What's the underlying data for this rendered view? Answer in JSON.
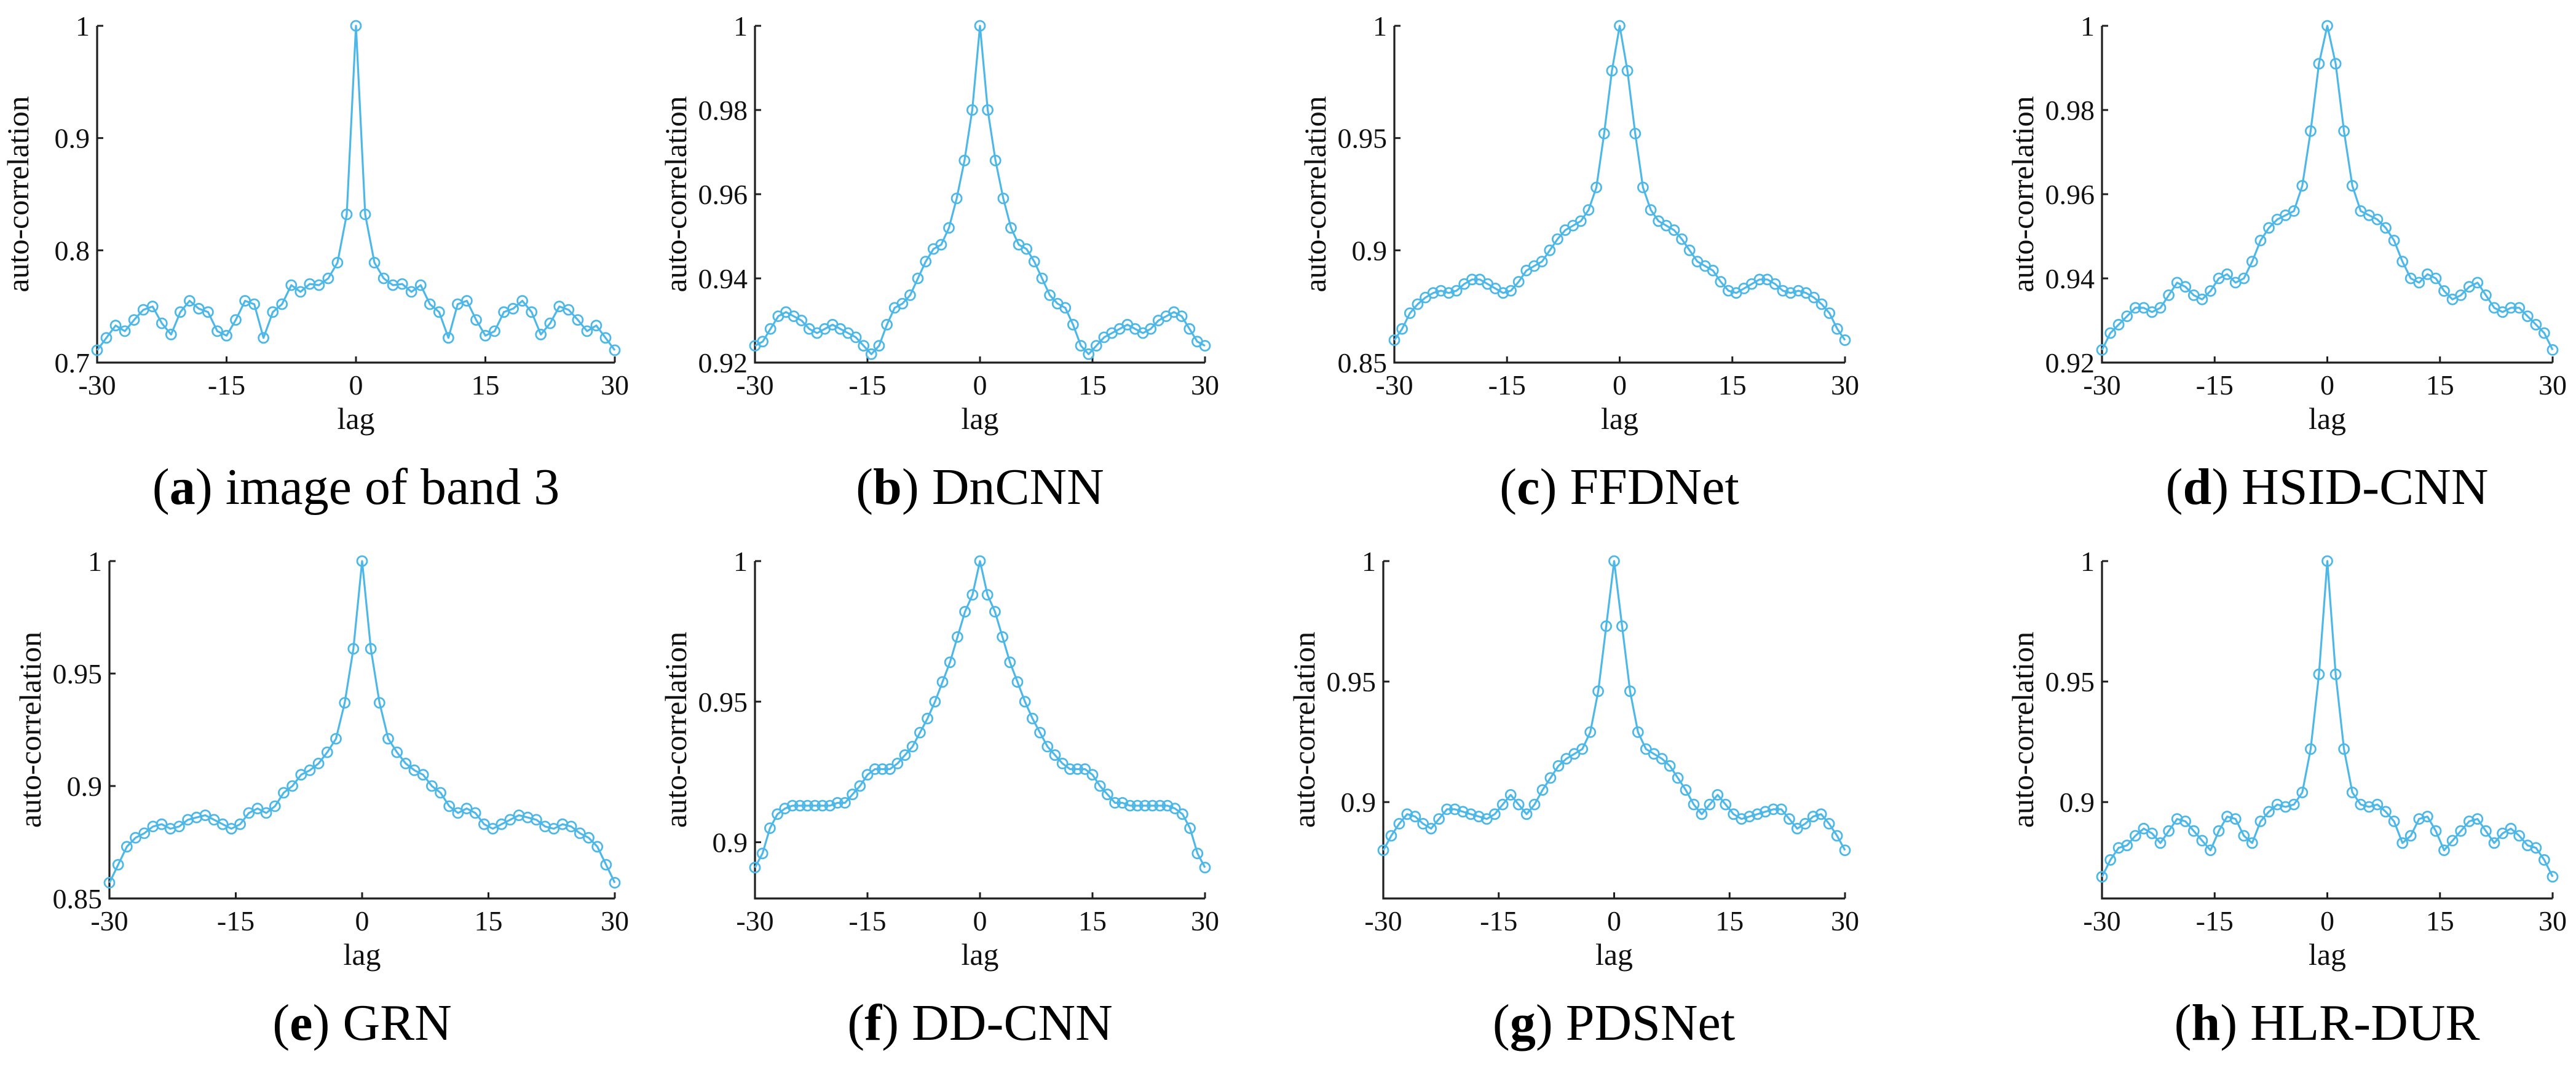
{
  "style": {
    "line_color": "#4db8e8",
    "axis_color": "#1f1f1f"
  },
  "chart_data": [
    {
      "id": "a",
      "type": "line",
      "caption_letter": "a",
      "caption_text": "image of band 3",
      "xlabel": "lag",
      "ylabel": "auto-correlation",
      "xlim": [
        -30,
        30
      ],
      "ylim": [
        0.7,
        1.0
      ],
      "xticks": [
        -30,
        -15,
        0,
        15,
        30
      ],
      "xtick_labels": [
        "-30",
        "-15",
        "0",
        "15",
        "30"
      ],
      "yticks": [
        0.7,
        0.8,
        0.9,
        1.0
      ],
      "ytick_labels": [
        "0.7",
        "0.8",
        "0.9",
        "1"
      ],
      "x_start": -30,
      "values": [
        0.711,
        0.722,
        0.733,
        0.728,
        0.738,
        0.747,
        0.75,
        0.735,
        0.725,
        0.745,
        0.755,
        0.748,
        0.745,
        0.728,
        0.724,
        0.738,
        0.755,
        0.752,
        0.722,
        0.745,
        0.752,
        0.769,
        0.763,
        0.77,
        0.769,
        0.775,
        0.789,
        0.832,
        1.0,
        0.832,
        0.789,
        0.775,
        0.769,
        0.77,
        0.763,
        0.769,
        0.752,
        0.745,
        0.722,
        0.752,
        0.755,
        0.738,
        0.724,
        0.728,
        0.745,
        0.748,
        0.755,
        0.745,
        0.725,
        0.735,
        0.75,
        0.747,
        0.738,
        0.728,
        0.733,
        0.722,
        0.711
      ]
    },
    {
      "id": "b",
      "type": "line",
      "caption_letter": "b",
      "caption_text": "DnCNN",
      "xlabel": "lag",
      "ylabel": "auto-correlation",
      "xlim": [
        -30,
        30
      ],
      "ylim": [
        0.92,
        1.0
      ],
      "xticks": [
        -30,
        -15,
        0,
        15,
        30
      ],
      "xtick_labels": [
        "-30",
        "-15",
        "0",
        "15",
        "30"
      ],
      "yticks": [
        0.92,
        0.94,
        0.96,
        0.98,
        1.0
      ],
      "ytick_labels": [
        "0.92",
        "0.94",
        "0.96",
        "0.98",
        "1"
      ],
      "x_start": -30,
      "values": [
        0.924,
        0.925,
        0.928,
        0.931,
        0.932,
        0.931,
        0.93,
        0.928,
        0.927,
        0.928,
        0.929,
        0.928,
        0.927,
        0.926,
        0.924,
        0.922,
        0.924,
        0.929,
        0.933,
        0.934,
        0.936,
        0.94,
        0.944,
        0.947,
        0.948,
        0.952,
        0.959,
        0.968,
        0.98,
        1.0,
        0.98,
        0.968,
        0.959,
        0.952,
        0.948,
        0.947,
        0.944,
        0.94,
        0.936,
        0.934,
        0.933,
        0.929,
        0.924,
        0.922,
        0.924,
        0.926,
        0.927,
        0.928,
        0.929,
        0.928,
        0.927,
        0.928,
        0.93,
        0.931,
        0.932,
        0.931,
        0.928,
        0.925,
        0.924
      ]
    },
    {
      "id": "c",
      "type": "line",
      "caption_letter": "c",
      "caption_text": "FFDNet",
      "xlabel": "lag",
      "ylabel": "auto-correlation",
      "xlim": [
        -30,
        30
      ],
      "ylim": [
        0.85,
        1.0
      ],
      "xticks": [
        -30,
        -15,
        0,
        15,
        30
      ],
      "xtick_labels": [
        "-30",
        "-15",
        "0",
        "15",
        "30"
      ],
      "yticks": [
        0.85,
        0.9,
        0.95,
        1.0
      ],
      "ytick_labels": [
        "0.85",
        "0.9",
        "0.95",
        "1"
      ],
      "x_start": -30,
      "values": [
        0.86,
        0.865,
        0.872,
        0.876,
        0.879,
        0.881,
        0.882,
        0.881,
        0.882,
        0.885,
        0.887,
        0.887,
        0.885,
        0.883,
        0.881,
        0.882,
        0.886,
        0.891,
        0.893,
        0.895,
        0.9,
        0.905,
        0.909,
        0.911,
        0.913,
        0.918,
        0.928,
        0.952,
        0.98,
        1.0,
        0.98,
        0.952,
        0.928,
        0.918,
        0.913,
        0.911,
        0.909,
        0.905,
        0.9,
        0.895,
        0.893,
        0.891,
        0.886,
        0.882,
        0.881,
        0.883,
        0.885,
        0.887,
        0.887,
        0.885,
        0.882,
        0.881,
        0.882,
        0.881,
        0.879,
        0.876,
        0.872,
        0.865,
        0.86
      ]
    },
    {
      "id": "d",
      "type": "line",
      "caption_letter": "d",
      "caption_text": "HSID-CNN",
      "xlabel": "lag",
      "ylabel": "auto-correlation",
      "xlim": [
        -30,
        30
      ],
      "ylim": [
        0.92,
        1.0
      ],
      "xticks": [
        -30,
        -15,
        0,
        15,
        30
      ],
      "xtick_labels": [
        "-30",
        "-15",
        "0",
        "15",
        "30"
      ],
      "yticks": [
        0.92,
        0.94,
        0.96,
        0.98,
        1.0
      ],
      "ytick_labels": [
        "0.92",
        "0.94",
        "0.96",
        "0.98",
        "1"
      ],
      "x_start": -30,
      "values": [
        0.923,
        0.927,
        0.929,
        0.931,
        0.933,
        0.933,
        0.932,
        0.933,
        0.936,
        0.939,
        0.938,
        0.936,
        0.935,
        0.937,
        0.94,
        0.941,
        0.939,
        0.94,
        0.944,
        0.949,
        0.952,
        0.954,
        0.955,
        0.956,
        0.962,
        0.975,
        0.991,
        1.0,
        0.991,
        0.975,
        0.962,
        0.956,
        0.955,
        0.954,
        0.952,
        0.949,
        0.944,
        0.94,
        0.939,
        0.941,
        0.94,
        0.937,
        0.935,
        0.936,
        0.938,
        0.939,
        0.936,
        0.933,
        0.932,
        0.933,
        0.933,
        0.931,
        0.929,
        0.927,
        0.923
      ]
    },
    {
      "id": "e",
      "type": "line",
      "caption_letter": "e",
      "caption_text": "GRN",
      "xlabel": "lag",
      "ylabel": "auto-correlation",
      "xlim": [
        -30,
        30
      ],
      "ylim": [
        0.85,
        1.0
      ],
      "xticks": [
        -30,
        -15,
        0,
        15,
        30
      ],
      "xtick_labels": [
        "-30",
        "-15",
        "0",
        "15",
        "30"
      ],
      "yticks": [
        0.85,
        0.9,
        0.95,
        1.0
      ],
      "ytick_labels": [
        "0.85",
        "0.9",
        "0.95",
        "1"
      ],
      "x_start": -30,
      "values": [
        0.857,
        0.865,
        0.873,
        0.877,
        0.879,
        0.882,
        0.883,
        0.881,
        0.882,
        0.885,
        0.886,
        0.887,
        0.885,
        0.883,
        0.881,
        0.883,
        0.888,
        0.89,
        0.888,
        0.891,
        0.897,
        0.9,
        0.905,
        0.907,
        0.91,
        0.915,
        0.921,
        0.937,
        0.961,
        1.0,
        0.961,
        0.937,
        0.921,
        0.915,
        0.91,
        0.907,
        0.905,
        0.9,
        0.897,
        0.891,
        0.888,
        0.89,
        0.888,
        0.883,
        0.881,
        0.883,
        0.885,
        0.887,
        0.886,
        0.885,
        0.882,
        0.881,
        0.883,
        0.882,
        0.879,
        0.877,
        0.873,
        0.865,
        0.857
      ]
    },
    {
      "id": "f",
      "type": "line",
      "caption_letter": "f",
      "caption_text": "DD-CNN",
      "xlabel": "lag",
      "ylabel": "auto-correlation",
      "xlim": [
        -30,
        30
      ],
      "ylim": [
        0.88,
        1.0
      ],
      "xticks": [
        -30,
        -15,
        0,
        15,
        30
      ],
      "xtick_labels": [
        "-30",
        "-15",
        "0",
        "15",
        "30"
      ],
      "yticks": [
        0.9,
        0.95,
        1.0
      ],
      "ytick_labels": [
        "0.9",
        "0.95",
        "1"
      ],
      "x_start": -30,
      "values": [
        0.891,
        0.896,
        0.905,
        0.91,
        0.912,
        0.913,
        0.913,
        0.913,
        0.913,
        0.913,
        0.913,
        0.914,
        0.914,
        0.917,
        0.92,
        0.924,
        0.926,
        0.926,
        0.926,
        0.928,
        0.931,
        0.934,
        0.939,
        0.944,
        0.95,
        0.957,
        0.964,
        0.973,
        0.982,
        0.988,
        1.0,
        0.988,
        0.982,
        0.973,
        0.964,
        0.957,
        0.95,
        0.944,
        0.939,
        0.934,
        0.931,
        0.928,
        0.926,
        0.926,
        0.926,
        0.924,
        0.92,
        0.917,
        0.914,
        0.914,
        0.913,
        0.913,
        0.913,
        0.913,
        0.913,
        0.913,
        0.912,
        0.91,
        0.905,
        0.896,
        0.891
      ]
    },
    {
      "id": "g",
      "type": "line",
      "caption_letter": "g",
      "caption_text": "PDSNet",
      "xlabel": "lag",
      "ylabel": "auto-correlation",
      "xlim": [
        -30,
        30
      ],
      "ylim": [
        0.86,
        1.0
      ],
      "xticks": [
        -30,
        -15,
        0,
        15,
        30
      ],
      "xtick_labels": [
        "-30",
        "-15",
        "0",
        "15",
        "30"
      ],
      "yticks": [
        0.9,
        0.95,
        1.0
      ],
      "ytick_labels": [
        "0.9",
        "0.95",
        "1"
      ],
      "x_start": -30,
      "values": [
        0.88,
        0.886,
        0.891,
        0.895,
        0.894,
        0.891,
        0.889,
        0.893,
        0.897,
        0.897,
        0.896,
        0.895,
        0.894,
        0.893,
        0.895,
        0.899,
        0.903,
        0.899,
        0.895,
        0.899,
        0.905,
        0.91,
        0.915,
        0.918,
        0.92,
        0.922,
        0.929,
        0.946,
        0.973,
        1.0,
        0.973,
        0.946,
        0.929,
        0.922,
        0.92,
        0.918,
        0.915,
        0.91,
        0.905,
        0.899,
        0.895,
        0.899,
        0.903,
        0.899,
        0.895,
        0.893,
        0.894,
        0.895,
        0.896,
        0.897,
        0.897,
        0.893,
        0.889,
        0.891,
        0.894,
        0.895,
        0.891,
        0.886,
        0.88
      ]
    },
    {
      "id": "h",
      "type": "line",
      "caption_letter": "h",
      "caption_text": "HLR-DUR",
      "xlabel": "lag",
      "ylabel": "auto-correlation",
      "xlim": [
        -30,
        30
      ],
      "ylim": [
        0.86,
        1.0
      ],
      "xticks": [
        -30,
        -15,
        0,
        15,
        30
      ],
      "xtick_labels": [
        "-30",
        "-15",
        "0",
        "15",
        "30"
      ],
      "yticks": [
        0.9,
        0.95,
        1.0
      ],
      "ytick_labels": [
        "0.9",
        "0.95",
        "1"
      ],
      "x_start": -30,
      "values": [
        0.869,
        0.876,
        0.881,
        0.882,
        0.886,
        0.889,
        0.887,
        0.883,
        0.888,
        0.893,
        0.892,
        0.888,
        0.884,
        0.88,
        0.888,
        0.894,
        0.893,
        0.886,
        0.883,
        0.892,
        0.896,
        0.899,
        0.898,
        0.899,
        0.904,
        0.922,
        0.953,
        1.0,
        0.953,
        0.922,
        0.904,
        0.899,
        0.898,
        0.899,
        0.896,
        0.892,
        0.883,
        0.886,
        0.893,
        0.894,
        0.888,
        0.88,
        0.884,
        0.888,
        0.892,
        0.893,
        0.888,
        0.883,
        0.887,
        0.889,
        0.886,
        0.882,
        0.881,
        0.876,
        0.869
      ]
    }
  ]
}
